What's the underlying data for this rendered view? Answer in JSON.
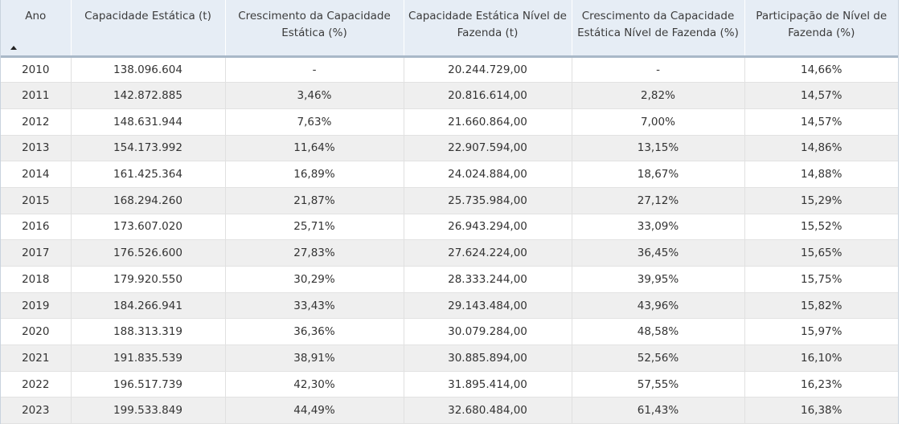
{
  "table": {
    "headers": {
      "ano": "Ano",
      "capacidade": "Capacidade Estática (t)",
      "crescimento": "Crescimento da Capacidade Estática (%)",
      "capacidade_fazenda": "Capacidade Estática Nível de Fazenda (t)",
      "crescimento_fazenda": "Crescimento da Capacidade Estática Nível de Fazenda (%)",
      "participacao": "Participação de Nível de Fazenda (%)"
    },
    "sort": {
      "column": "ano",
      "direction": "ascending",
      "icon": "sort-ascending-icon"
    },
    "rows": [
      {
        "ano": "2010",
        "capacidade": "138.096.604",
        "crescimento": "-",
        "capacidade_fazenda": "20.244.729,00",
        "crescimento_fazenda": "-",
        "participacao": "14,66%"
      },
      {
        "ano": "2011",
        "capacidade": "142.872.885",
        "crescimento": "3,46%",
        "capacidade_fazenda": "20.816.614,00",
        "crescimento_fazenda": "2,82%",
        "participacao": "14,57%"
      },
      {
        "ano": "2012",
        "capacidade": "148.631.944",
        "crescimento": "7,63%",
        "capacidade_fazenda": "21.660.864,00",
        "crescimento_fazenda": "7,00%",
        "participacao": "14,57%"
      },
      {
        "ano": "2013",
        "capacidade": "154.173.992",
        "crescimento": "11,64%",
        "capacidade_fazenda": "22.907.594,00",
        "crescimento_fazenda": "13,15%",
        "participacao": "14,86%"
      },
      {
        "ano": "2014",
        "capacidade": "161.425.364",
        "crescimento": "16,89%",
        "capacidade_fazenda": "24.024.884,00",
        "crescimento_fazenda": "18,67%",
        "participacao": "14,88%"
      },
      {
        "ano": "2015",
        "capacidade": "168.294.260",
        "crescimento": "21,87%",
        "capacidade_fazenda": "25.735.984,00",
        "crescimento_fazenda": "27,12%",
        "participacao": "15,29%"
      },
      {
        "ano": "2016",
        "capacidade": "173.607.020",
        "crescimento": "25,71%",
        "capacidade_fazenda": "26.943.294,00",
        "crescimento_fazenda": "33,09%",
        "participacao": "15,52%"
      },
      {
        "ano": "2017",
        "capacidade": "176.526.600",
        "crescimento": "27,83%",
        "capacidade_fazenda": "27.624.224,00",
        "crescimento_fazenda": "36,45%",
        "participacao": "15,65%"
      },
      {
        "ano": "2018",
        "capacidade": "179.920.550",
        "crescimento": "30,29%",
        "capacidade_fazenda": "28.333.244,00",
        "crescimento_fazenda": "39,95%",
        "participacao": "15,75%"
      },
      {
        "ano": "2019",
        "capacidade": "184.266.941",
        "crescimento": "33,43%",
        "capacidade_fazenda": "29.143.484,00",
        "crescimento_fazenda": "43,96%",
        "participacao": "15,82%"
      },
      {
        "ano": "2020",
        "capacidade": "188.313.319",
        "crescimento": "36,36%",
        "capacidade_fazenda": "30.079.284,00",
        "crescimento_fazenda": "48,58%",
        "participacao": "15,97%"
      },
      {
        "ano": "2021",
        "capacidade": "191.835.539",
        "crescimento": "38,91%",
        "capacidade_fazenda": "30.885.894,00",
        "crescimento_fazenda": "52,56%",
        "participacao": "16,10%"
      },
      {
        "ano": "2022",
        "capacidade": "196.517.739",
        "crescimento": "42,30%",
        "capacidade_fazenda": "31.895.414,00",
        "crescimento_fazenda": "57,55%",
        "participacao": "16,23%"
      },
      {
        "ano": "2023",
        "capacidade": "199.533.849",
        "crescimento": "44,49%",
        "capacidade_fazenda": "32.680.484,00",
        "crescimento_fazenda": "61,43%",
        "participacao": "16,38%"
      }
    ]
  },
  "colors": {
    "header_bg": "#e6edf5",
    "header_border": "#a9b8c8",
    "row_alt_bg": "#efefef",
    "text": "#333333"
  }
}
